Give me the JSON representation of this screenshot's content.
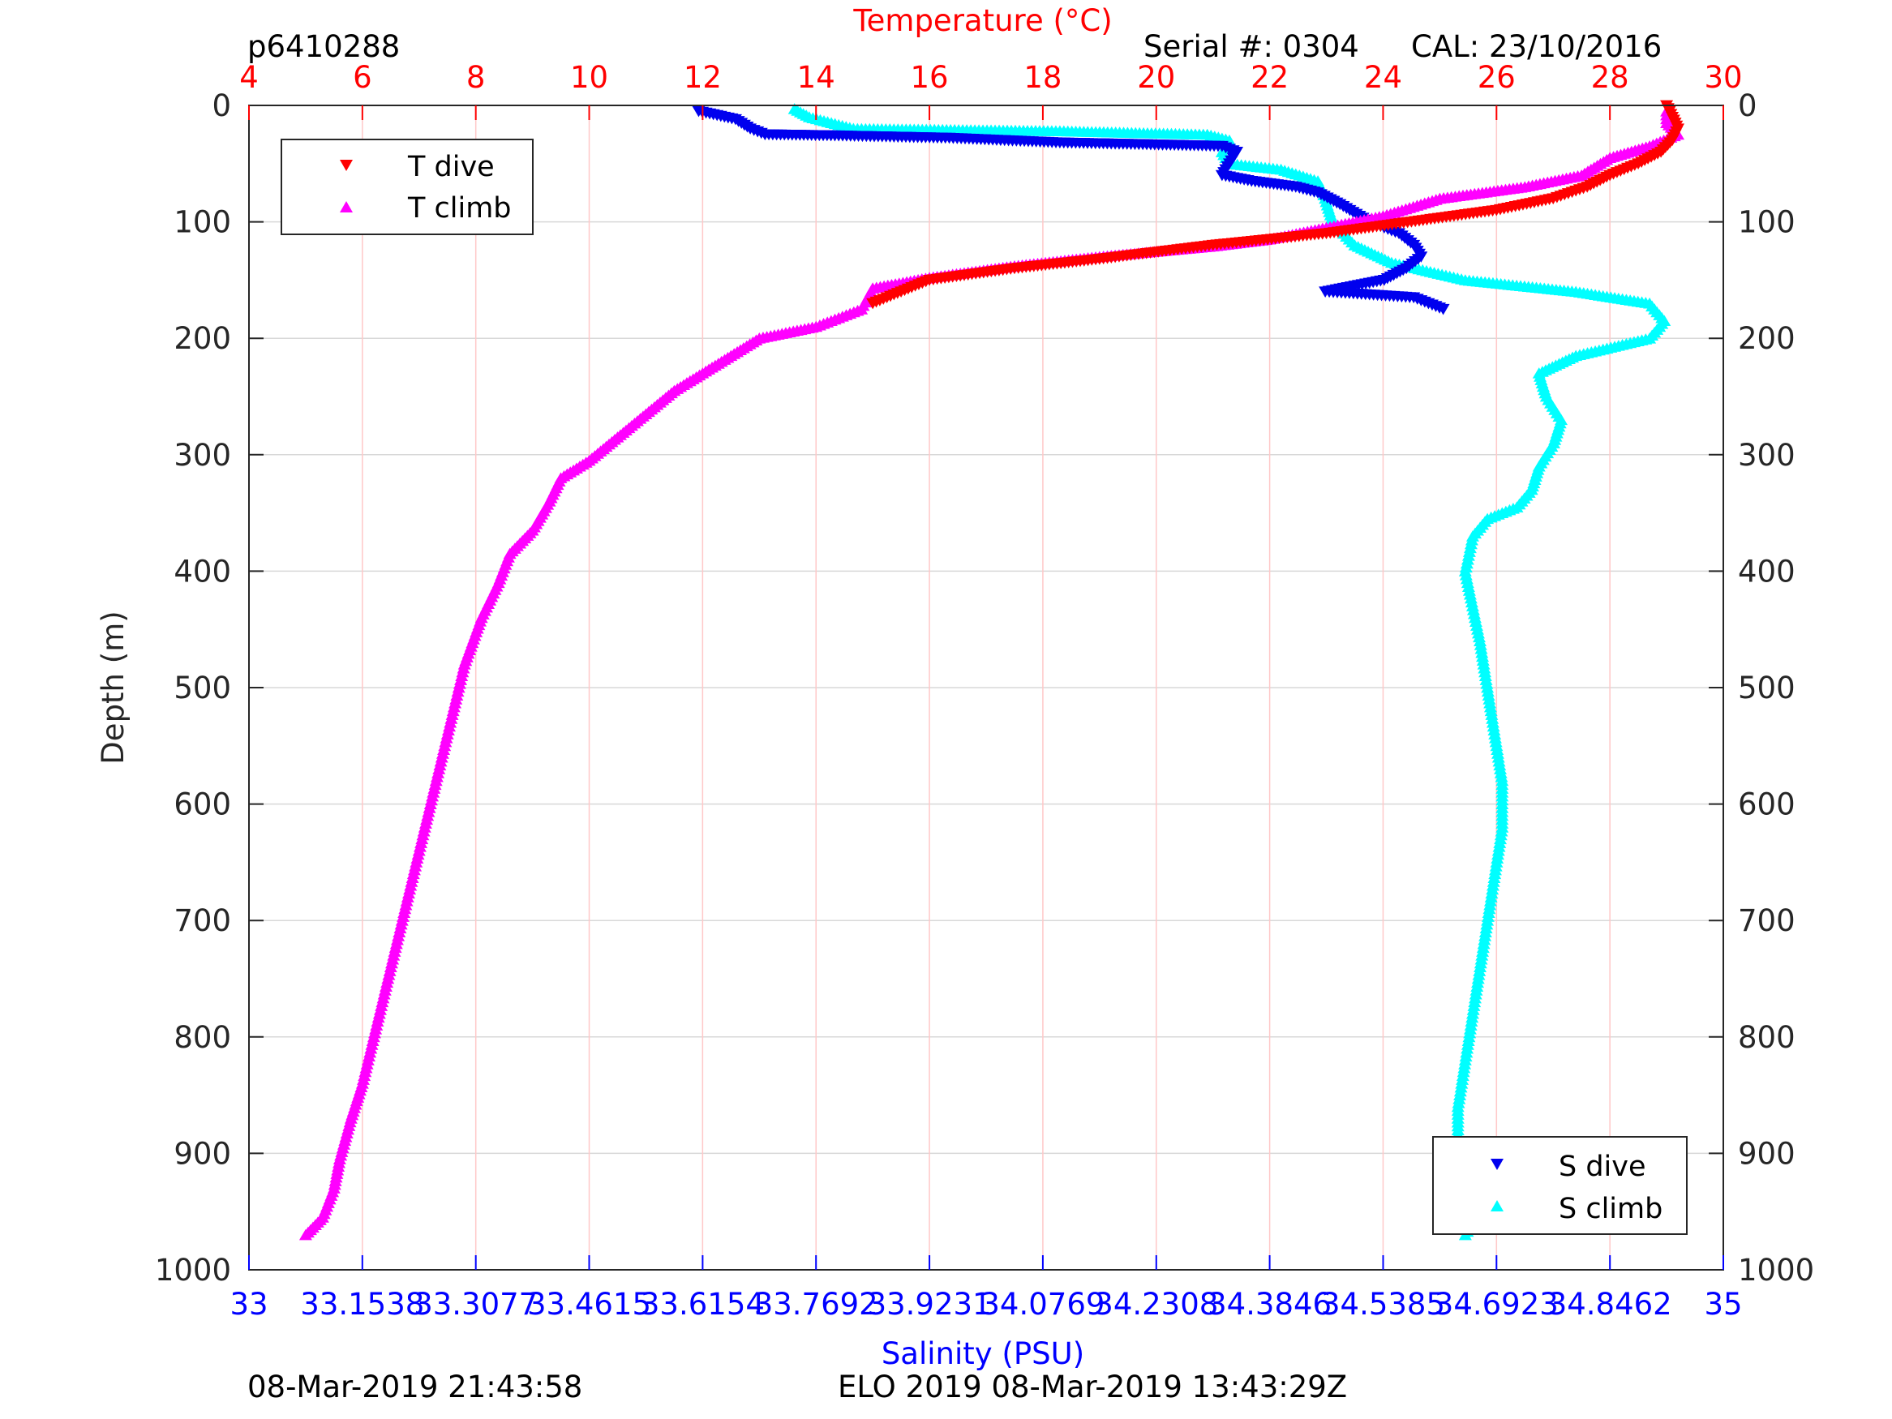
{
  "header": {
    "profile_id": "p6410288",
    "serial": "Serial #: 0304",
    "cal": "CAL: 23/10/2016"
  },
  "footer": {
    "left_timestamp": "08-Mar-2019 21:43:58",
    "right_text": "ELO 2019 08-Mar-2019 13:43:29Z"
  },
  "colors": {
    "t_dive": "#ff0000",
    "t_climb": "#ff00ff",
    "s_dive": "#0000ee",
    "s_climb": "#00ffff",
    "temp_axis": "#ff0000",
    "sal_axis": "#0000ff",
    "depth_grid": "#d8d8d8",
    "temp_grid": "#ffc8c8"
  },
  "chart_data": {
    "type": "scatter",
    "y_axis": {
      "label": "Depth (m)",
      "lim": [
        0,
        1000
      ],
      "reversed": true,
      "ticks": [
        0,
        100,
        200,
        300,
        400,
        500,
        600,
        700,
        800,
        900,
        1000
      ]
    },
    "temp_axis": {
      "label": "Temperature (°C)",
      "position": "top",
      "lim": [
        4,
        30
      ],
      "ticks": [
        4,
        6,
        8,
        10,
        12,
        14,
        16,
        18,
        20,
        22,
        24,
        26,
        28,
        30
      ]
    },
    "sal_axis": {
      "label": "Salinity (PSU)",
      "position": "bottom",
      "lim": [
        33,
        35
      ],
      "ticks": [
        33,
        33.1538,
        33.3077,
        33.4615,
        33.6154,
        33.7692,
        33.9231,
        34.0769,
        34.2308,
        34.3846,
        34.5385,
        34.6923,
        34.8462,
        35
      ],
      "tick_labels": [
        "33",
        "33.1538",
        "33.3077",
        "33.4615",
        "33.6154",
        "33.7692",
        "33.9231",
        "34.0769",
        "34.2308",
        "34.3846",
        "34.5385",
        "34.6923",
        "34.8462",
        "35"
      ]
    },
    "legend_temp": {
      "position": "top-left",
      "entries": [
        "T dive",
        "T climb"
      ]
    },
    "legend_sal": {
      "position": "bottom-right",
      "entries": [
        "S dive",
        "S climb"
      ]
    },
    "series": [
      {
        "name": "T dive",
        "axis": "temp",
        "marker": "triangle-down",
        "points": [
          [
            29.0,
            0
          ],
          [
            29.1,
            10
          ],
          [
            29.2,
            20
          ],
          [
            29.1,
            30
          ],
          [
            28.9,
            40
          ],
          [
            28.5,
            50
          ],
          [
            28.0,
            60
          ],
          [
            27.6,
            70
          ],
          [
            27.0,
            80
          ],
          [
            26.0,
            90
          ],
          [
            24.5,
            100
          ],
          [
            23.0,
            110
          ],
          [
            21.0,
            120
          ],
          [
            19.0,
            132
          ],
          [
            17.5,
            140
          ],
          [
            16.0,
            150
          ],
          [
            15.0,
            170
          ]
        ]
      },
      {
        "name": "T climb",
        "axis": "temp",
        "marker": "triangle-up",
        "points": [
          [
            29.0,
            5
          ],
          [
            29.0,
            15
          ],
          [
            29.2,
            25
          ],
          [
            28.7,
            35
          ],
          [
            28.0,
            45
          ],
          [
            27.5,
            60
          ],
          [
            26.5,
            70
          ],
          [
            25.0,
            80
          ],
          [
            24.0,
            95
          ],
          [
            23.0,
            105
          ],
          [
            22.0,
            115
          ],
          [
            21.0,
            121
          ],
          [
            19.0,
            130
          ],
          [
            17.5,
            138
          ],
          [
            16.0,
            148
          ],
          [
            15.0,
            157
          ],
          [
            14.8,
            175
          ],
          [
            14.0,
            190
          ],
          [
            13.0,
            200
          ],
          [
            12.5,
            215
          ],
          [
            12.0,
            230
          ],
          [
            11.5,
            245
          ],
          [
            11.0,
            265
          ],
          [
            10.5,
            285
          ],
          [
            10.0,
            305
          ],
          [
            9.5,
            320
          ],
          [
            9.3,
            340
          ],
          [
            9.0,
            365
          ],
          [
            8.6,
            385
          ],
          [
            8.4,
            410
          ],
          [
            8.1,
            440
          ],
          [
            7.8,
            480
          ],
          [
            7.6,
            520
          ],
          [
            7.4,
            560
          ],
          [
            7.2,
            600
          ],
          [
            7.0,
            640
          ],
          [
            6.8,
            680
          ],
          [
            6.6,
            720
          ],
          [
            6.4,
            760
          ],
          [
            6.2,
            800
          ],
          [
            6.0,
            840
          ],
          [
            5.8,
            870
          ],
          [
            5.6,
            905
          ],
          [
            5.5,
            930
          ],
          [
            5.3,
            955
          ],
          [
            5.0,
            970
          ]
        ]
      },
      {
        "name": "S dive",
        "axis": "sal",
        "marker": "triangle-down",
        "points": [
          [
            33.61,
            5
          ],
          [
            33.66,
            12
          ],
          [
            33.68,
            20
          ],
          [
            33.7,
            25
          ],
          [
            33.8,
            26
          ],
          [
            33.95,
            28
          ],
          [
            34.1,
            32
          ],
          [
            34.25,
            34
          ],
          [
            34.32,
            35
          ],
          [
            34.34,
            40
          ],
          [
            34.33,
            50
          ],
          [
            34.32,
            60
          ],
          [
            34.36,
            65
          ],
          [
            34.42,
            70
          ],
          [
            34.45,
            75
          ],
          [
            34.48,
            85
          ],
          [
            34.52,
            100
          ],
          [
            34.56,
            110
          ],
          [
            34.58,
            120
          ],
          [
            34.59,
            130
          ],
          [
            34.57,
            140
          ],
          [
            34.54,
            150
          ],
          [
            34.5,
            155
          ],
          [
            34.46,
            160
          ],
          [
            34.58,
            165
          ],
          [
            34.62,
            175
          ]
        ]
      },
      {
        "name": "S climb",
        "axis": "sal",
        "marker": "triangle-up",
        "points": [
          [
            33.74,
            3
          ],
          [
            33.76,
            10
          ],
          [
            33.82,
            20
          ],
          [
            34.1,
            22
          ],
          [
            34.3,
            25
          ],
          [
            34.33,
            30
          ],
          [
            34.32,
            40
          ],
          [
            34.33,
            50
          ],
          [
            34.4,
            55
          ],
          [
            34.45,
            65
          ],
          [
            34.46,
            80
          ],
          [
            34.47,
            100
          ],
          [
            34.5,
            120
          ],
          [
            34.55,
            135
          ],
          [
            34.65,
            150
          ],
          [
            34.8,
            160
          ],
          [
            34.9,
            170
          ],
          [
            34.92,
            185
          ],
          [
            34.9,
            200
          ],
          [
            34.8,
            215
          ],
          [
            34.75,
            230
          ],
          [
            34.76,
            250
          ],
          [
            34.78,
            270
          ],
          [
            34.77,
            290
          ],
          [
            34.75,
            310
          ],
          [
            34.74,
            330
          ],
          [
            34.72,
            345
          ],
          [
            34.68,
            355
          ],
          [
            34.66,
            370
          ],
          [
            34.65,
            400
          ],
          [
            34.66,
            430
          ],
          [
            34.67,
            460
          ],
          [
            34.68,
            500
          ],
          [
            34.69,
            540
          ],
          [
            34.7,
            580
          ],
          [
            34.7,
            620
          ],
          [
            34.69,
            660
          ],
          [
            34.68,
            700
          ],
          [
            34.67,
            740
          ],
          [
            34.66,
            780
          ],
          [
            34.65,
            820
          ],
          [
            34.64,
            860
          ],
          [
            34.64,
            890
          ],
          [
            34.65,
            910
          ],
          [
            34.67,
            930
          ],
          [
            34.67,
            950
          ],
          [
            34.65,
            970
          ]
        ]
      }
    ]
  }
}
